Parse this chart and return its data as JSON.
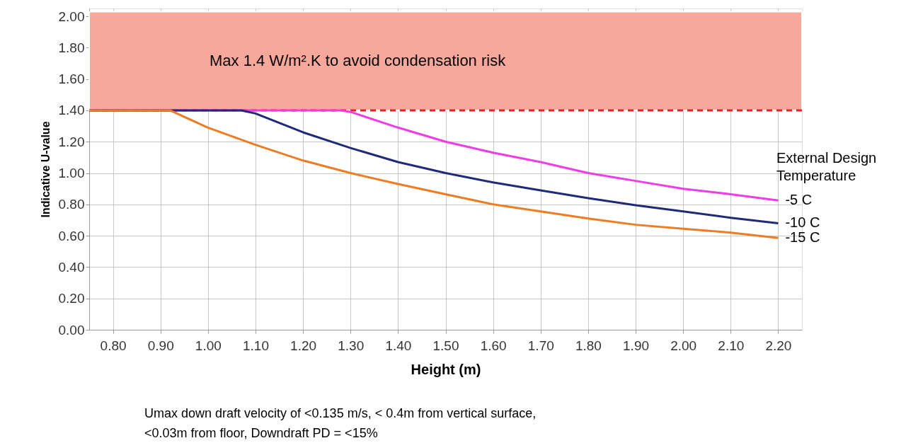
{
  "chart_data": {
    "type": "line",
    "xlabel": "Height (m)",
    "ylabel": "Indicative U-value",
    "legend_title": "External Design Temperature",
    "xlim": [
      0.75,
      2.25
    ],
    "ylim": [
      0,
      2.05
    ],
    "xticks": [
      {
        "value": 0.8,
        "label": "0.80"
      },
      {
        "value": 0.9,
        "label": "0.90"
      },
      {
        "value": 1.0,
        "label": "1.00"
      },
      {
        "value": 1.1,
        "label": "1.10"
      },
      {
        "value": 1.2,
        "label": "1.20"
      },
      {
        "value": 1.3,
        "label": "1.30"
      },
      {
        "value": 1.4,
        "label": "1.40"
      },
      {
        "value": 1.5,
        "label": "1.50"
      },
      {
        "value": 1.6,
        "label": "1.60"
      },
      {
        "value": 1.7,
        "label": "1.70"
      },
      {
        "value": 1.8,
        "label": "1.80"
      },
      {
        "value": 1.9,
        "label": "1.90"
      },
      {
        "value": 2.0,
        "label": "2.00"
      },
      {
        "value": 2.1,
        "label": "2.10"
      },
      {
        "value": 2.2,
        "label": "2.20"
      }
    ],
    "yticks": [
      {
        "value": 0,
        "label": "0.00"
      },
      {
        "value": 0.2,
        "label": "0.20"
      },
      {
        "value": 0.4,
        "label": "0.40"
      },
      {
        "value": 0.6,
        "label": "0.60"
      },
      {
        "value": 0.8,
        "label": "0.80"
      },
      {
        "value": 1.0,
        "label": "1.00"
      },
      {
        "value": 1.2,
        "label": "1.20"
      },
      {
        "value": 1.4,
        "label": "1.40"
      },
      {
        "value": 1.6,
        "label": "1.60"
      },
      {
        "value": 1.8,
        "label": "1.80"
      },
      {
        "value": 2.0,
        "label": "2.00"
      }
    ],
    "grid": true,
    "legend": "right",
    "marker": "none",
    "line_style": "solid",
    "series": [
      {
        "name": "-5 C",
        "color": "#f03ce6",
        "x": [
          0.75,
          1.28,
          1.3,
          1.4,
          1.5,
          1.6,
          1.7,
          1.8,
          1.9,
          2.0,
          2.1,
          2.2
        ],
        "values": [
          1.4,
          1.4,
          1.39,
          1.29,
          1.2,
          1.13,
          1.07,
          1.0,
          0.95,
          0.9,
          0.865,
          0.825
        ]
      },
      {
        "name": "-10 C",
        "color": "#1f2a7a",
        "x": [
          0.75,
          1.07,
          1.1,
          1.2,
          1.3,
          1.4,
          1.5,
          1.6,
          1.7,
          1.8,
          1.9,
          2.0,
          2.1,
          2.2
        ],
        "values": [
          1.4,
          1.4,
          1.38,
          1.26,
          1.16,
          1.07,
          1.0,
          0.94,
          0.89,
          0.84,
          0.795,
          0.755,
          0.715,
          0.68
        ]
      },
      {
        "name": "-15 C",
        "color": "#f07c22",
        "x": [
          0.75,
          0.92,
          1.0,
          1.1,
          1.2,
          1.3,
          1.4,
          1.5,
          1.6,
          1.7,
          1.8,
          1.9,
          2.0,
          2.1,
          2.2
        ],
        "values": [
          1.4,
          1.4,
          1.29,
          1.18,
          1.08,
          1.0,
          0.93,
          0.865,
          0.8,
          0.755,
          0.71,
          0.67,
          0.645,
          0.62,
          0.586
        ]
      }
    ],
    "ref_lines": [
      {
        "axis": "y",
        "value": 1.4,
        "color": "#e8202a",
        "line_style": "dashed"
      }
    ],
    "bands": [
      {
        "axis": "y",
        "from": 1.4,
        "to": 2.03,
        "color": "#f8a89a",
        "label": "Max 1.4 W/m².K to avoid condensation risk"
      }
    ],
    "annotations": [
      "Umax down draft velocity of <0.135 m/s, < 0.4m from vertical surface, <0.03m from floor, Downdraft PD = <15%"
    ]
  }
}
